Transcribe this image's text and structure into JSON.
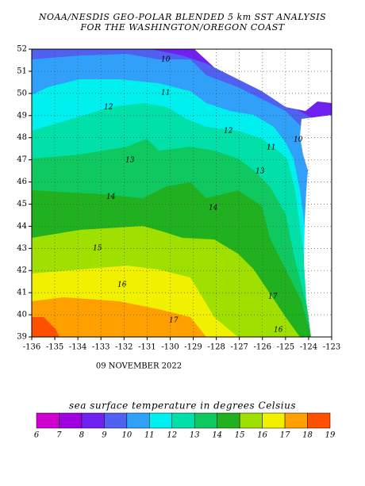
{
  "map": {
    "title": [
      "NOAA/NESDIS GEO-POLAR BLENDED 5 km SST ANALYSIS",
      "FOR THE WASHINGTON/OREGON COAST"
    ],
    "date": "09 NOVEMBER 2022",
    "xlim": [
      -136,
      -123
    ],
    "ylim": [
      39,
      52
    ],
    "xticks": [
      -136,
      -135,
      -134,
      -133,
      -132,
      -131,
      -130,
      -129,
      -128,
      -127,
      -126,
      -125,
      -124,
      -123
    ],
    "yticks": [
      39,
      40,
      41,
      42,
      43,
      44,
      45,
      46,
      47,
      48,
      49,
      50,
      51,
      52
    ],
    "contour_labels": [
      "10",
      "10",
      "11",
      "11",
      "12",
      "12",
      "13",
      "13",
      "14",
      "14",
      "15",
      "16",
      "16",
      "17",
      "17"
    ],
    "legend": {
      "label": "sea surface temperature in degrees Celsius",
      "ticks": [
        6,
        7,
        8,
        9,
        10,
        11,
        12,
        13,
        14,
        15,
        16,
        17,
        18,
        19
      ],
      "colors": [
        "#d000d0",
        "#a000e0",
        "#7020f0",
        "#5060f0",
        "#30a0f8",
        "#00f0f0",
        "#00e0a8",
        "#10c860",
        "#20b020",
        "#a0e000",
        "#f0f000",
        "#ffa000",
        "#ff5000"
      ]
    }
  }
}
